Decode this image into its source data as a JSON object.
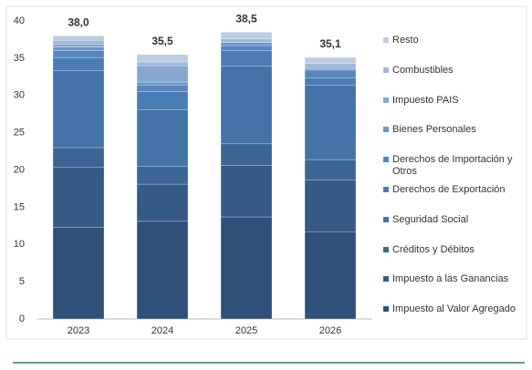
{
  "chart_data": {
    "type": "stacked_bar",
    "categories": [
      "2023",
      "2024",
      "2025",
      "2026"
    ],
    "series": [
      {
        "name": "Impuesto al Valor Agregado",
        "color": "#2f5078",
        "values": [
          12.3,
          13.1,
          13.7,
          11.7
        ]
      },
      {
        "name": "Impuesto a las Ganancias",
        "color": "#365a86",
        "values": [
          8.1,
          5.0,
          6.9,
          7.0
        ]
      },
      {
        "name": "Créditos y Débitos",
        "color": "#3c6595",
        "values": [
          2.6,
          2.4,
          2.9,
          2.7
        ]
      },
      {
        "name": "Seguridad Social",
        "color": "#4372a6",
        "values": [
          10.3,
          7.6,
          10.4,
          10.0
        ]
      },
      {
        "name": "Derechos de Exportación",
        "color": "#4a7db5",
        "values": [
          1.8,
          2.4,
          2.1,
          1.0
        ]
      },
      {
        "name": "Derechos de Importación y Otros",
        "color": "#5686bd",
        "values": [
          0.9,
          0.9,
          0.7,
          1.0
        ]
      },
      {
        "name": "Bienes Personales",
        "color": "#6d95c6",
        "values": [
          0.5,
          0.4,
          0.4,
          0.2
        ]
      },
      {
        "name": "Impuesto PAIS",
        "color": "#87a7cf",
        "values": [
          0.4,
          2.2,
          0,
          0
        ]
      },
      {
        "name": "Combustibles",
        "color": "#a1b9d9",
        "values": [
          0.5,
          0.5,
          0.5,
          0.7
        ]
      },
      {
        "name": "Resto",
        "color": "#bccde4",
        "values": [
          0.6,
          1.0,
          0.9,
          0.8
        ]
      }
    ],
    "totals": [
      38.0,
      35.5,
      38.5,
      35.1
    ],
    "total_labels": [
      "38,0",
      "35,5",
      "38,5",
      "35,1"
    ],
    "ylim": [
      0,
      40
    ],
    "yticks": [
      0,
      5,
      10,
      15,
      20,
      25,
      30,
      35,
      40
    ],
    "legend": "right"
  }
}
